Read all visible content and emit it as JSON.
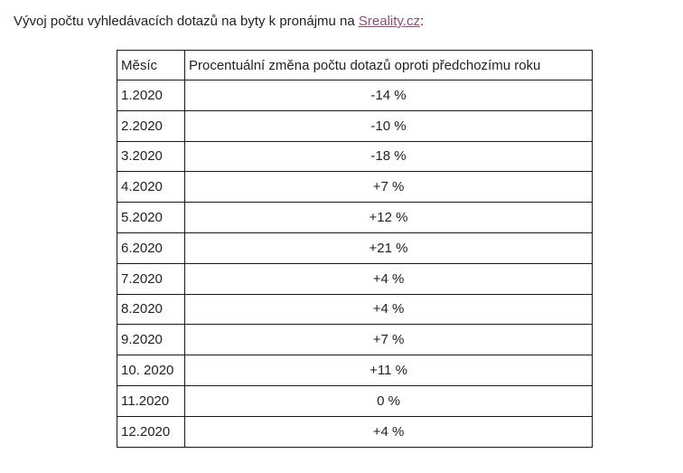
{
  "intro": {
    "text_before": "Vývoj počtu vyhledávacích dotazů na byty k pronájmu na ",
    "link_text": "Sreality.cz",
    "text_after": ":",
    "link_color": "#8a4e7a"
  },
  "table": {
    "headers": [
      "Měsíc",
      "Procentuální změna počtu dotazů oproti předchozímu roku"
    ],
    "rows": [
      {
        "month": "1.2020",
        "change": "-14 %"
      },
      {
        "month": "2.2020",
        "change": "-10 %"
      },
      {
        "month": "3.2020",
        "change": "-18 %"
      },
      {
        "month": "4.2020",
        "change": "+7 %"
      },
      {
        "month": "5.2020",
        "change": "+12 %"
      },
      {
        "month": "6.2020",
        "change": "+21 %"
      },
      {
        "month": "7.2020",
        "change": "+4 %"
      },
      {
        "month": "8.2020",
        "change": "+4 %"
      },
      {
        "month": "9.2020",
        "change": "+7 %"
      },
      {
        "month": "10. 2020",
        "change": "+11 %"
      },
      {
        "month": "11.2020",
        "change": "0 %"
      },
      {
        "month": "12.2020",
        "change": "+4 %"
      }
    ]
  }
}
